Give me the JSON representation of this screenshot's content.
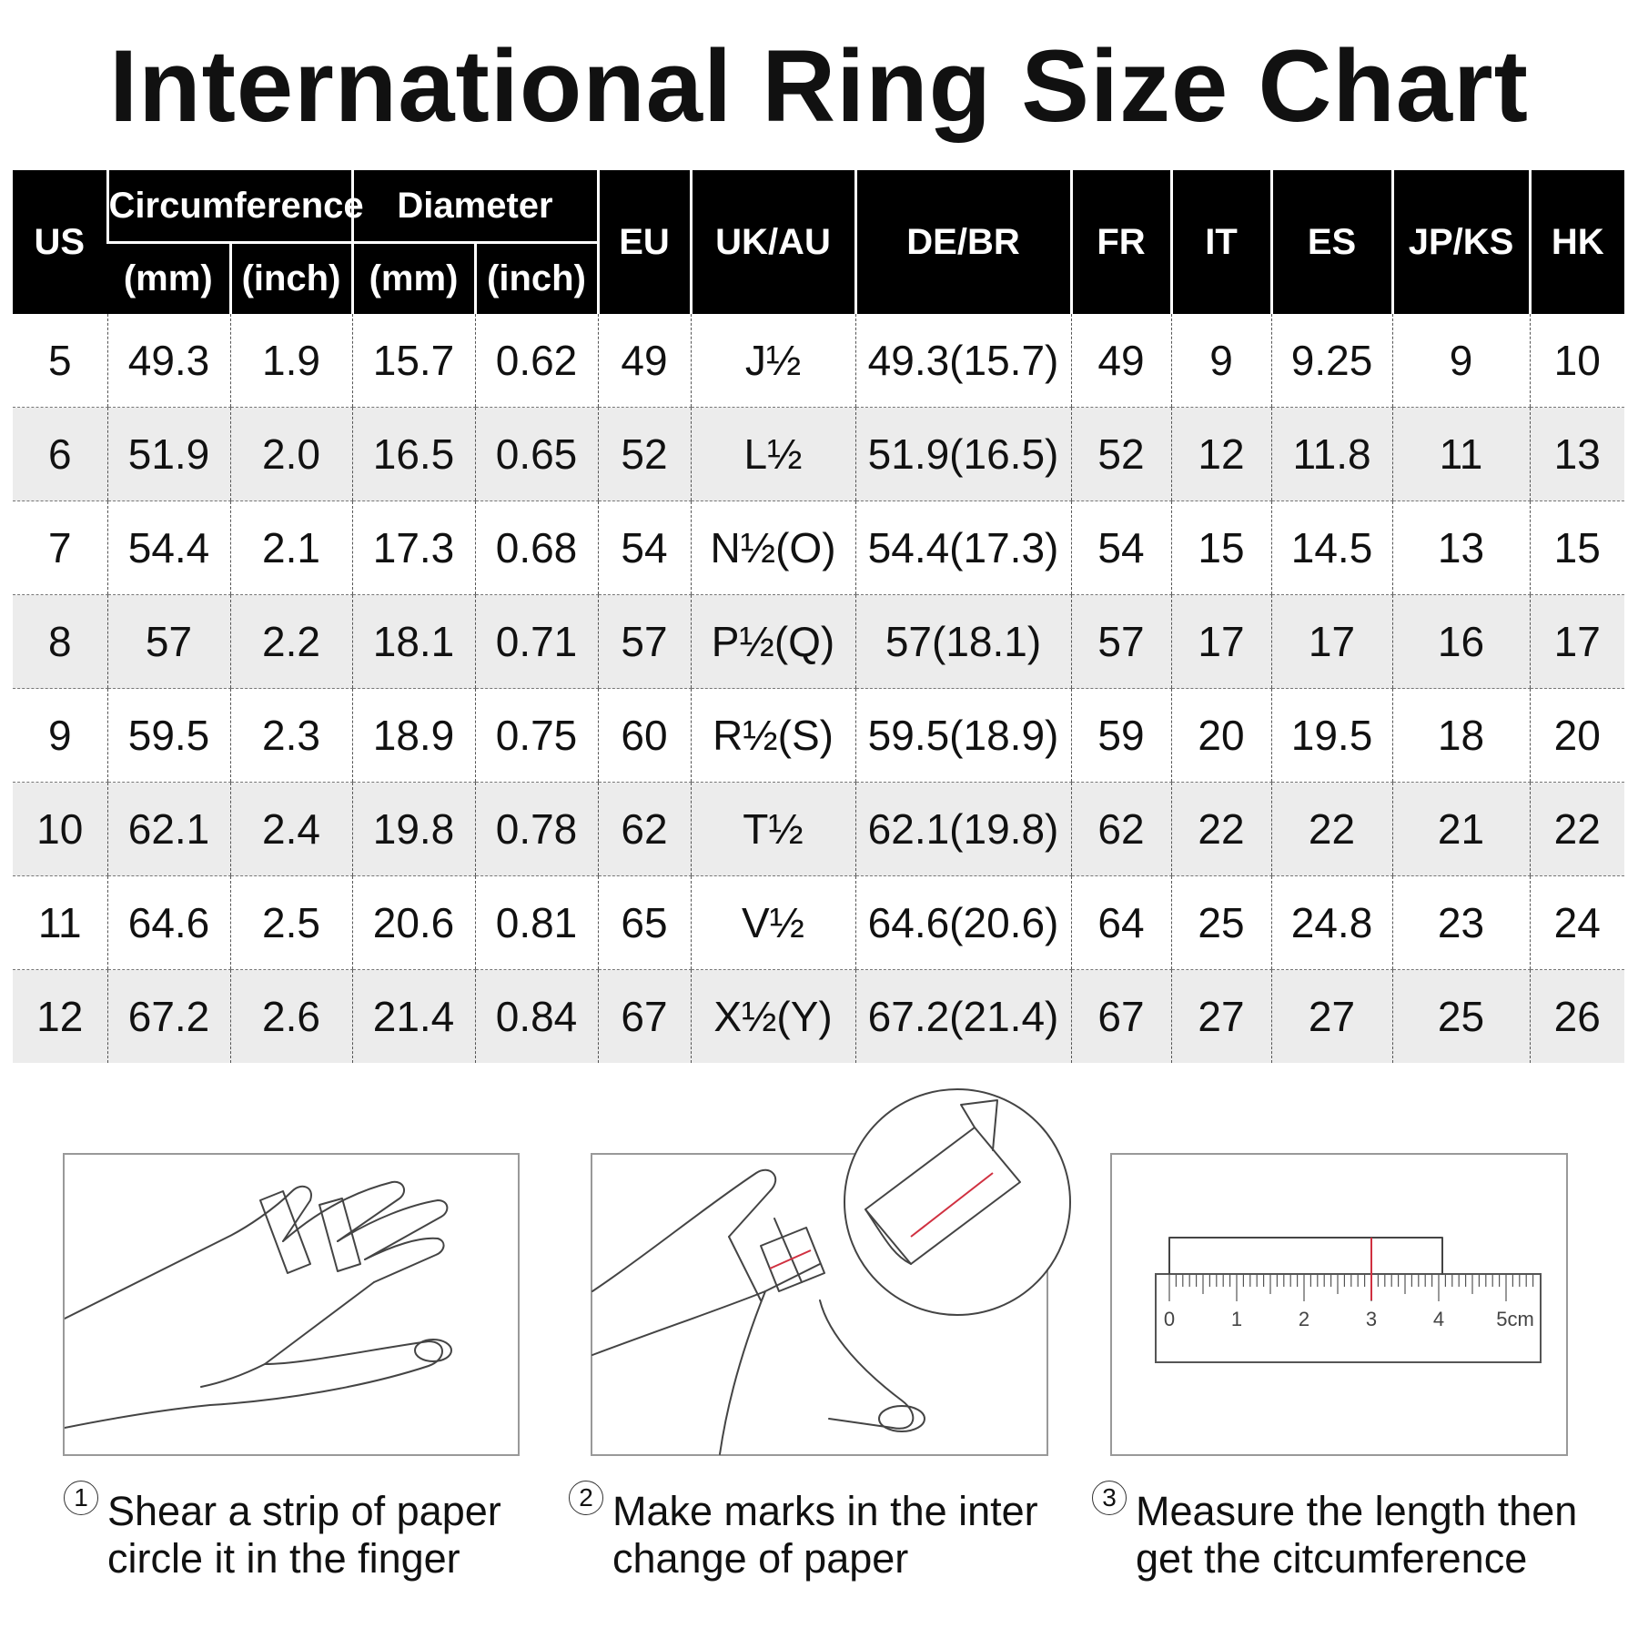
{
  "title": "International Ring Size Chart",
  "chart_data": {
    "type": "table",
    "title": "International Ring Size Chart",
    "header_groups": [
      {
        "label": "US"
      },
      {
        "label": "Circumference",
        "sub": [
          "(mm)",
          "(inch)"
        ]
      },
      {
        "label": "Diameter",
        "sub": [
          "(mm)",
          "(inch)"
        ]
      },
      {
        "label": "EU"
      },
      {
        "label": "UK/AU"
      },
      {
        "label": "DE/BR"
      },
      {
        "label": "FR"
      },
      {
        "label": "IT"
      },
      {
        "label": "ES"
      },
      {
        "label": "JP/KS"
      },
      {
        "label": "HK"
      }
    ],
    "columns": [
      "US",
      "Circumference (mm)",
      "Circumference (inch)",
      "Diameter (mm)",
      "Diameter (inch)",
      "EU",
      "UK/AU",
      "DE/BR",
      "FR",
      "IT",
      "ES",
      "JP/KS",
      "HK"
    ],
    "rows": [
      [
        "5",
        "49.3",
        "1.9",
        "15.7",
        "0.62",
        "49",
        "J½",
        "49.3(15.7)",
        "49",
        "9",
        "9.25",
        "9",
        "10"
      ],
      [
        "6",
        "51.9",
        "2.0",
        "16.5",
        "0.65",
        "52",
        "L½",
        "51.9(16.5)",
        "52",
        "12",
        "11.8",
        "11",
        "13"
      ],
      [
        "7",
        "54.4",
        "2.1",
        "17.3",
        "0.68",
        "54",
        "N½(O)",
        "54.4(17.3)",
        "54",
        "15",
        "14.5",
        "13",
        "15"
      ],
      [
        "8",
        "57",
        "2.2",
        "18.1",
        "0.71",
        "57",
        "P½(Q)",
        "57(18.1)",
        "57",
        "17",
        "17",
        "16",
        "17"
      ],
      [
        "9",
        "59.5",
        "2.3",
        "18.9",
        "0.75",
        "60",
        "R½(S)",
        "59.5(18.9)",
        "59",
        "20",
        "19.5",
        "18",
        "20"
      ],
      [
        "10",
        "62.1",
        "2.4",
        "19.8",
        "0.78",
        "62",
        "T½",
        "62.1(19.8)",
        "62",
        "22",
        "22",
        "21",
        "22"
      ],
      [
        "11",
        "64.6",
        "2.5",
        "20.6",
        "0.81",
        "65",
        "V½",
        "64.6(20.6)",
        "64",
        "25",
        "24.8",
        "23",
        "24"
      ],
      [
        "12",
        "67.2",
        "2.6",
        "21.4",
        "0.84",
        "67",
        "X½(Y)",
        "67.2(21.4)",
        "67",
        "27",
        "27",
        "25",
        "26"
      ]
    ]
  },
  "steps": [
    {
      "number": "1",
      "line1": "Shear a strip of paper",
      "line2": "circle it in the finger"
    },
    {
      "number": "2",
      "line1": "Make marks in the inter",
      "line2": "change of paper"
    },
    {
      "number": "3",
      "line1": "Measure the length then",
      "line2": "get the citcumference"
    }
  ],
  "ruler": {
    "labels": [
      "0",
      "1",
      "2",
      "3",
      "4",
      "5cm"
    ],
    "measured_mark": 3
  },
  "colors": {
    "header_bg": "#000000",
    "header_text": "#ffffff",
    "alt_row": "#ececec",
    "mark_red": "#d03040"
  }
}
